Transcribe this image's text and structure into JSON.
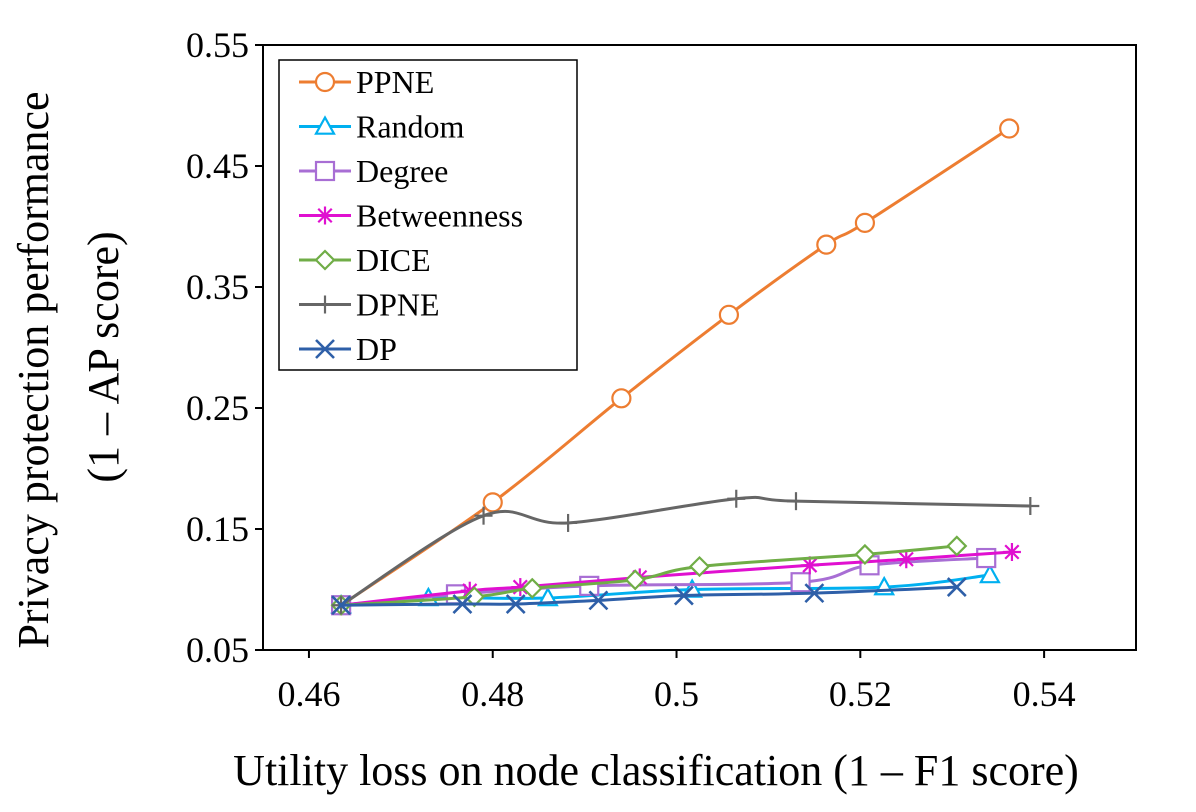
{
  "chart_data": {
    "type": "line",
    "title": "",
    "xlabel": "Utility loss on node classification (1 – F1 score)",
    "ylabel_line1": "Privacy protection performance",
    "ylabel_line2": "(1 – AP score)",
    "xlim": [
      0.455,
      0.55
    ],
    "ylim": [
      0.05,
      0.55
    ],
    "xticks": [
      0.46,
      0.48,
      0.5,
      0.52,
      0.54
    ],
    "xtick_labels": [
      "0.46",
      "0.48",
      "0.5",
      "0.52",
      "0.54"
    ],
    "yticks": [
      0.05,
      0.15,
      0.25,
      0.35,
      0.45,
      0.55
    ],
    "ytick_labels": [
      "0.05",
      "0.15",
      "0.25",
      "0.35",
      "0.45",
      "0.55"
    ],
    "legend_position": "top-left",
    "series": [
      {
        "name": "PPNE",
        "color": "#ED7D31",
        "marker": "circle",
        "x": [
          0.4635,
          0.48,
          0.494,
          0.5057,
          0.5163,
          0.5205,
          0.5362
        ],
        "y": [
          0.087,
          0.172,
          0.258,
          0.327,
          0.385,
          0.403,
          0.481
        ]
      },
      {
        "name": "Random",
        "color": "#00B0F0",
        "marker": "triangle",
        "x": [
          0.4635,
          0.473,
          0.486,
          0.5017,
          0.5226,
          0.5341
        ],
        "y": [
          0.087,
          0.093,
          0.093,
          0.1,
          0.102,
          0.112
        ]
      },
      {
        "name": "Degree",
        "color": "#A86ED4",
        "marker": "square",
        "x": [
          0.4635,
          0.476,
          0.4905,
          0.5135,
          0.521,
          0.5337
        ],
        "y": [
          0.087,
          0.096,
          0.103,
          0.106,
          0.12,
          0.126
        ]
      },
      {
        "name": "Betweenness",
        "color": "#E010D0",
        "marker": "asterisk",
        "x": [
          0.4635,
          0.4775,
          0.483,
          0.496,
          0.5145,
          0.525,
          0.5365
        ],
        "y": [
          0.087,
          0.099,
          0.102,
          0.11,
          0.12,
          0.125,
          0.131
        ]
      },
      {
        "name": "DICE",
        "color": "#70AD47",
        "marker": "diamond",
        "x": [
          0.4635,
          0.478,
          0.4843,
          0.4955,
          0.5025,
          0.5205,
          0.5305
        ],
        "y": [
          0.087,
          0.094,
          0.101,
          0.108,
          0.119,
          0.129,
          0.136
        ]
      },
      {
        "name": "DPNE",
        "color": "#666666",
        "marker": "plus",
        "x": [
          0.4635,
          0.479,
          0.4882,
          0.5065,
          0.513,
          0.5385
        ],
        "y": [
          0.087,
          0.161,
          0.155,
          0.175,
          0.173,
          0.169
        ]
      },
      {
        "name": "DP",
        "color": "#2E5FA8",
        "marker": "x",
        "x": [
          0.4635,
          0.4767,
          0.4825,
          0.4915,
          0.5008,
          0.515,
          0.5305
        ],
        "y": [
          0.087,
          0.088,
          0.088,
          0.091,
          0.095,
          0.097,
          0.102
        ]
      }
    ]
  }
}
